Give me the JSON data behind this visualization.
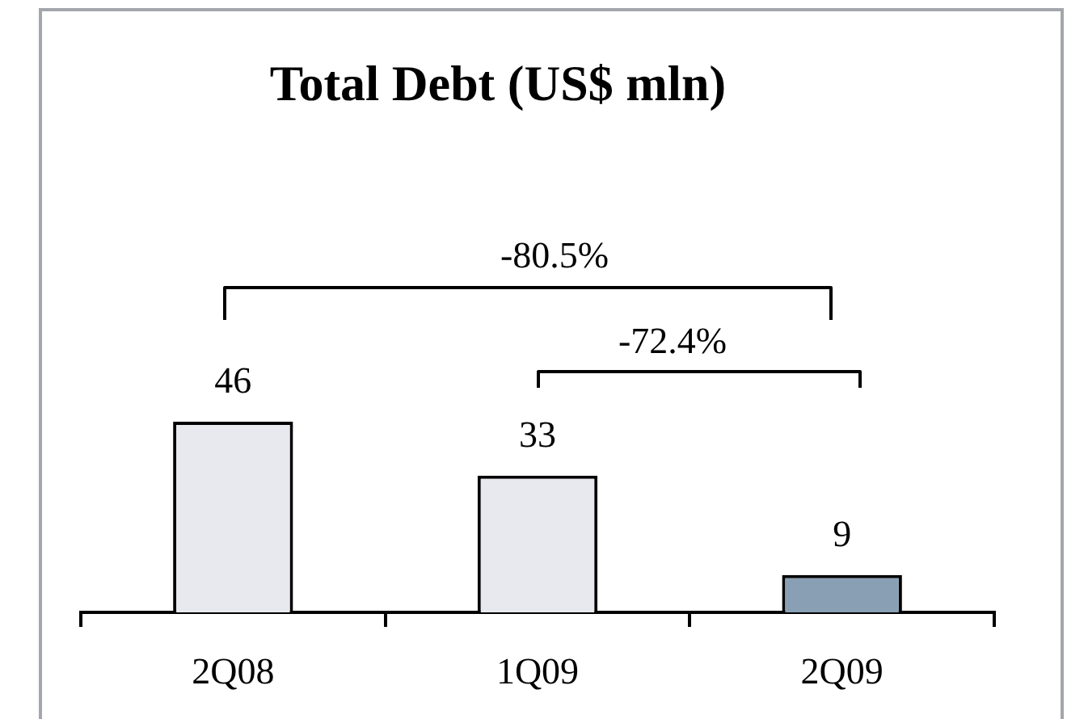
{
  "chart_data": {
    "type": "bar",
    "title": "Total Debt (US$ mln)",
    "categories": [
      "2Q08",
      "1Q09",
      "2Q09"
    ],
    "values": [
      46,
      33,
      9
    ],
    "colors": [
      "#e7e9ee",
      "#e7e9ee",
      "#899fb4"
    ],
    "data_labels": true,
    "annotations": [
      "-80.5%",
      "-72.4%"
    ]
  }
}
